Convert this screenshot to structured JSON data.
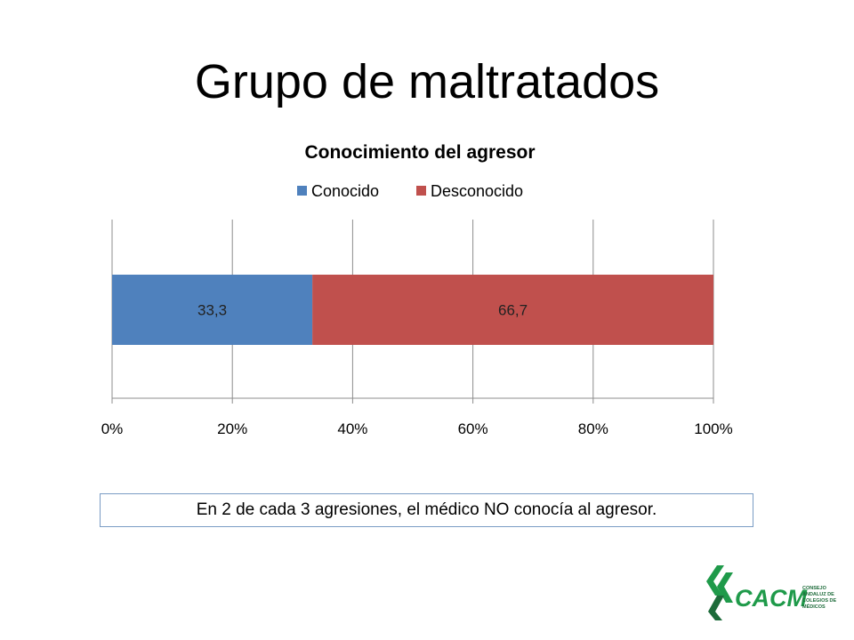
{
  "slide": {
    "title": "Grupo de maltratados",
    "note": "En 2 de cada 3 agresiones, el médico NO conocía al agresor."
  },
  "logo": {
    "text": "CACM",
    "subtitle_lines": [
      "CONSEJO",
      "ANDALUZ DE",
      "COLEGIOS DE",
      "MÉDICOS"
    ],
    "colors": {
      "green": "#1f9a4a",
      "dark_green": "#1d6b3a"
    }
  },
  "chart_data": {
    "type": "bar",
    "orientation": "horizontal",
    "stacked": "percent",
    "title": "Conocimiento del agresor",
    "categories": [
      ""
    ],
    "series": [
      {
        "name": "Conocido",
        "values": [
          33.3
        ],
        "labels": [
          "33,3"
        ],
        "color": "#4f81bd"
      },
      {
        "name": "Desconocido",
        "values": [
          66.7
        ],
        "labels": [
          "66,7"
        ],
        "color": "#c0504d"
      }
    ],
    "xlim": [
      0,
      100
    ],
    "x_ticks": [
      "0%",
      "20%",
      "40%",
      "60%",
      "80%",
      "100%"
    ],
    "grid": true,
    "legend": "top"
  }
}
